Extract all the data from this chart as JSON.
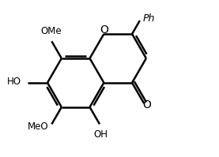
{
  "bg": "#ffffff",
  "lc": "#000000",
  "lw": 1.8,
  "fs": 9.0,
  "dbo": 0.09,
  "bl": 1.0,
  "xlim": [
    0.2,
    7.8
  ],
  "ylim": [
    1.0,
    6.5
  ],
  "figsize": [
    2.77,
    1.99
  ],
  "dpi": 100
}
